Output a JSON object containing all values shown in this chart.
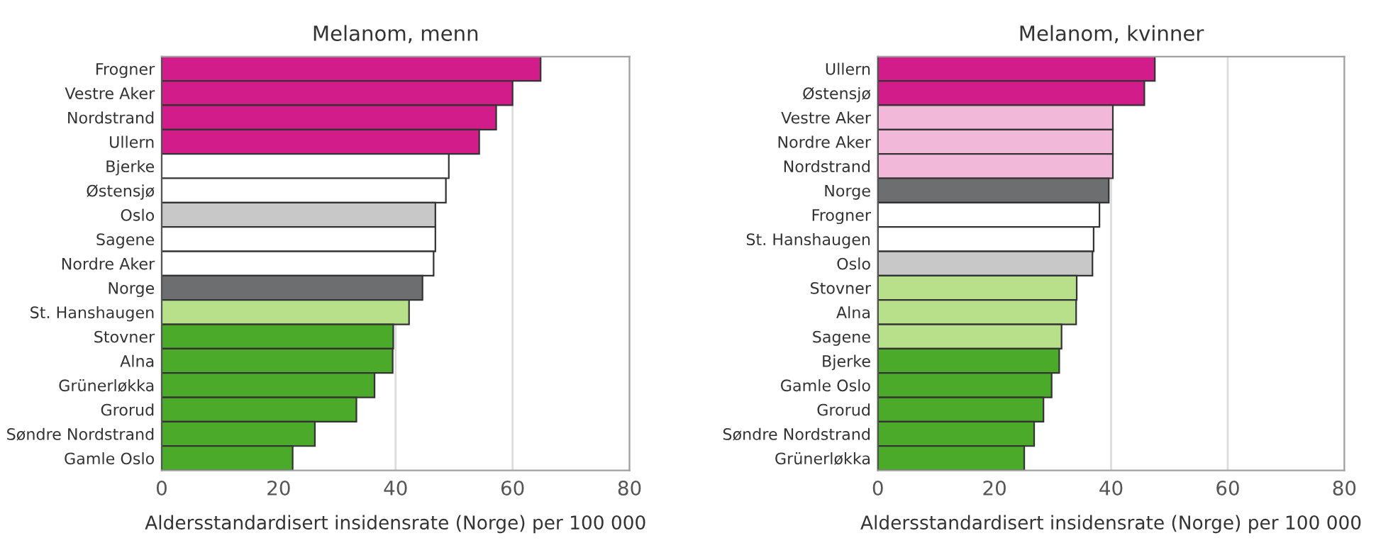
{
  "chart_data": [
    {
      "type": "bar",
      "orientation": "horizontal",
      "title": "Melanom, menn",
      "xlabel": "Aldersstandardisert insidensrate (Norge) per 100 000",
      "categories": [
        "Frogner",
        "Vestre Aker",
        "Nordstrand",
        "Ullern",
        "Bjerke",
        "Østensjø",
        "Oslo",
        "Sagene",
        "Nordre Aker",
        "Norge",
        "St. Hanshaugen",
        "Stovner",
        "Alna",
        "Grünerløkka",
        "Grorud",
        "Søndre Nordstrand",
        "Gamle Oslo"
      ],
      "values": [
        64.8,
        60.0,
        57.2,
        54.3,
        49.1,
        48.6,
        46.8,
        46.8,
        46.5,
        44.6,
        42.3,
        39.6,
        39.5,
        36.4,
        33.3,
        26.2,
        22.4
      ],
      "colors": [
        "#d21c8a",
        "#d21c8a",
        "#d21c8a",
        "#d21c8a",
        "#ffffff",
        "#ffffff",
        "#c8c8c8",
        "#ffffff",
        "#ffffff",
        "#6d6e70",
        "#b8e08a",
        "#4caa2a",
        "#4caa2a",
        "#4caa2a",
        "#4caa2a",
        "#4caa2a",
        "#4caa2a"
      ],
      "xlim": [
        0,
        80
      ],
      "xticks": [
        0,
        20,
        40,
        60,
        80
      ],
      "grid": "x"
    },
    {
      "type": "bar",
      "orientation": "horizontal",
      "title": "Melanom, kvinner",
      "xlabel": "Aldersstandardisert insidensrate (Norge) per 100 000",
      "categories": [
        "Ullern",
        "Østensjø",
        "Vestre Aker",
        "Nordre Aker",
        "Nordstrand",
        "Norge",
        "Frogner",
        "St. Hanshaugen",
        "Oslo",
        "Stovner",
        "Alna",
        "Sagene",
        "Bjerke",
        "Gamle Oslo",
        "Grorud",
        "Søndre Nordstrand",
        "Grünerløkka"
      ],
      "values": [
        47.5,
        45.7,
        40.3,
        40.3,
        40.3,
        39.6,
        38.0,
        37.0,
        36.8,
        34.1,
        34.0,
        31.5,
        31.1,
        29.8,
        28.4,
        26.8,
        25.1
      ],
      "colors": [
        "#d21c8a",
        "#d21c8a",
        "#f1b8da",
        "#f1b8da",
        "#f1b8da",
        "#6d6e70",
        "#ffffff",
        "#ffffff",
        "#c8c8c8",
        "#b8e08a",
        "#b8e08a",
        "#b8e08a",
        "#4caa2a",
        "#4caa2a",
        "#4caa2a",
        "#4caa2a",
        "#4caa2a"
      ],
      "xlim": [
        0,
        80
      ],
      "xticks": [
        0,
        20,
        40,
        60,
        80
      ],
      "grid": "x"
    }
  ]
}
